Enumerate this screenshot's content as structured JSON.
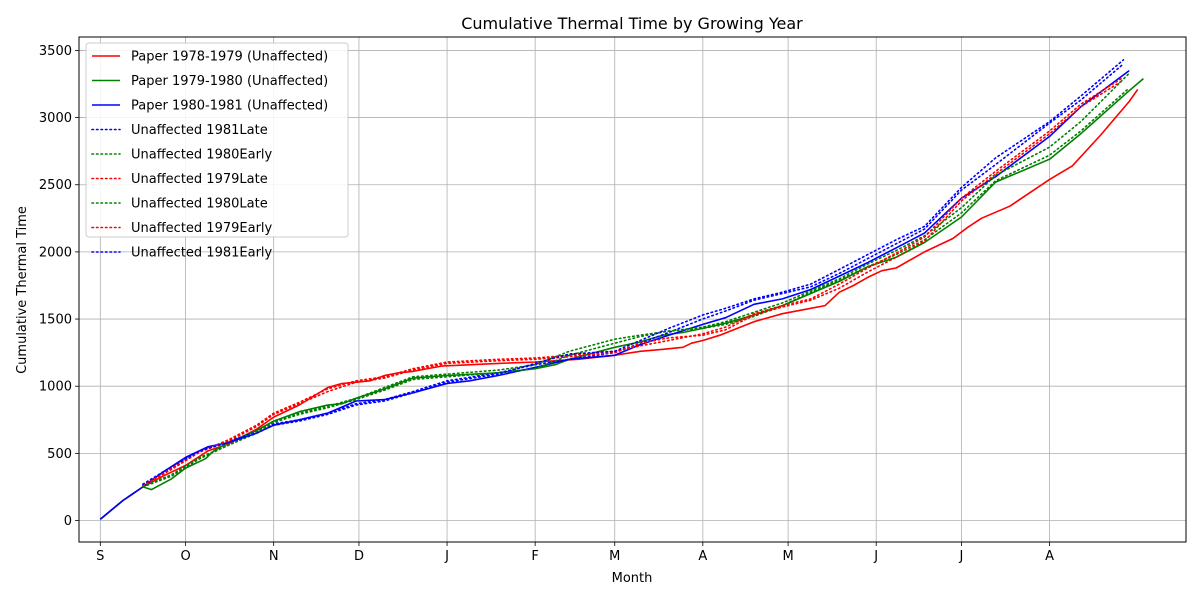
{
  "chart_data": {
    "type": "line",
    "title": "Cumulative Thermal Time by Growing Year",
    "xlabel": "Month",
    "ylabel": "Cumulative Thermal Time",
    "x_tick_labels": [
      "S",
      "O",
      "N",
      "D",
      "J",
      "F",
      "M",
      "A",
      "M",
      "J",
      "J",
      "A"
    ],
    "x_tick_days": [
      0,
      30,
      61,
      91,
      122,
      153,
      181,
      212,
      242,
      273,
      303,
      334
    ],
    "xlim": [
      -7.5,
      382
    ],
    "yticks": [
      0,
      500,
      1000,
      1500,
      2000,
      2500,
      3000,
      3500
    ],
    "ylim": [
      -160,
      3600
    ],
    "grid": true,
    "legend_position": "top-left",
    "series": [
      {
        "name": "Paper 1978-1979 (Unaffected)",
        "color": "#ff0000",
        "style": "solid",
        "x": [
          0,
          8,
          15,
          22,
          30,
          38,
          45,
          55,
          61,
          70,
          80,
          85,
          90,
          95,
          100,
          105,
          110,
          120,
          140,
          153,
          168,
          181,
          190,
          198,
          205,
          208,
          212,
          218,
          230,
          240,
          250,
          255,
          260,
          265,
          270,
          275,
          280,
          290,
          300,
          305,
          310,
          320,
          334,
          342,
          352,
          362,
          365
        ],
        "y": [
          10,
          150,
          250,
          330,
          410,
          520,
          570,
          680,
          770,
          860,
          990,
          1020,
          1030,
          1040,
          1080,
          1100,
          1110,
          1150,
          1170,
          1180,
          1200,
          1230,
          1260,
          1275,
          1290,
          1320,
          1340,
          1380,
          1480,
          1540,
          1580,
          1600,
          1700,
          1750,
          1810,
          1860,
          1880,
          2000,
          2100,
          2180,
          2250,
          2340,
          2540,
          2640,
          2870,
          3120,
          3210
        ]
      },
      {
        "name": "Paper 1979-1980 (Unaffected)",
        "color": "#008000",
        "style": "solid",
        "x": [
          0,
          8,
          15,
          18,
          25,
          30,
          37,
          40,
          45,
          55,
          61,
          70,
          80,
          85,
          90,
          100,
          110,
          122,
          140,
          153,
          160,
          165,
          181,
          190,
          198,
          205,
          212,
          220,
          230,
          240,
          250,
          260,
          270,
          280,
          290,
          303,
          315,
          334,
          345,
          362,
          367
        ],
        "y": [
          10,
          150,
          250,
          230,
          310,
          390,
          460,
          520,
          580,
          670,
          740,
          810,
          860,
          870,
          910,
          980,
          1060,
          1080,
          1100,
          1130,
          1160,
          1200,
          1290,
          1330,
          1380,
          1400,
          1430,
          1470,
          1530,
          1600,
          1690,
          1780,
          1890,
          1960,
          2070,
          2260,
          2520,
          2690,
          2880,
          3200,
          3290
        ]
      },
      {
        "name": "Paper 1980-1981 (Unaffected)",
        "color": "#0000ff",
        "style": "solid",
        "x": [
          0,
          8,
          15,
          22,
          30,
          38,
          45,
          55,
          61,
          70,
          80,
          90,
          100,
          110,
          122,
          130,
          140,
          153,
          165,
          181,
          190,
          200,
          212,
          220,
          230,
          240,
          250,
          260,
          270,
          280,
          290,
          303,
          315,
          334,
          345,
          362
        ],
        "y": [
          10,
          150,
          250,
          360,
          470,
          550,
          580,
          650,
          710,
          750,
          800,
          890,
          900,
          950,
          1020,
          1040,
          1080,
          1140,
          1200,
          1230,
          1310,
          1380,
          1460,
          1510,
          1610,
          1650,
          1720,
          1820,
          1920,
          2030,
          2140,
          2400,
          2560,
          2860,
          3080,
          3350
        ]
      },
      {
        "name": "Unaffected 1981Late",
        "color": "#0000ff",
        "style": "dotted",
        "x": [
          15,
          25,
          35,
          45,
          55,
          61,
          70,
          80,
          90,
          100,
          110,
          122,
          140,
          153,
          165,
          181,
          190,
          200,
          212,
          220,
          230,
          240,
          250,
          260,
          270,
          280,
          290,
          303,
          315,
          334,
          345,
          360
        ],
        "y": [
          260,
          390,
          520,
          590,
          660,
          720,
          750,
          800,
          870,
          900,
          960,
          1040,
          1100,
          1160,
          1200,
          1250,
          1320,
          1400,
          1500,
          1560,
          1640,
          1690,
          1740,
          1840,
          1950,
          2060,
          2170,
          2460,
          2650,
          2960,
          3130,
          3400
        ]
      },
      {
        "name": "Unaffected 1980Early",
        "color": "#008000",
        "style": "dotted",
        "x": [
          15,
          25,
          35,
          45,
          55,
          61,
          70,
          80,
          90,
          100,
          110,
          122,
          140,
          153,
          165,
          181,
          190,
          200,
          212,
          220,
          230,
          240,
          250,
          260,
          270,
          280,
          290,
          303,
          315,
          334,
          345,
          362
        ],
        "y": [
          250,
          330,
          460,
          560,
          650,
          730,
          790,
          840,
          900,
          970,
          1050,
          1070,
          1100,
          1130,
          1230,
          1320,
          1370,
          1410,
          1430,
          1460,
          1520,
          1600,
          1700,
          1790,
          1890,
          1980,
          2090,
          2290,
          2530,
          2720,
          2900,
          3220
        ]
      },
      {
        "name": "Unaffected 1979Late",
        "color": "#ff0000",
        "style": "dotted",
        "x": [
          15,
          25,
          35,
          45,
          55,
          61,
          70,
          80,
          90,
          100,
          110,
          122,
          140,
          153,
          165,
          181,
          190,
          200,
          212,
          220,
          230,
          240,
          250,
          260,
          270,
          280,
          290,
          303,
          315,
          334,
          345,
          360
        ],
        "y": [
          260,
          390,
          510,
          590,
          700,
          790,
          870,
          960,
          1030,
          1060,
          1120,
          1170,
          1190,
          1200,
          1220,
          1250,
          1320,
          1360,
          1380,
          1420,
          1530,
          1590,
          1640,
          1730,
          1850,
          1960,
          2080,
          2380,
          2580,
          2880,
          3080,
          3280
        ]
      },
      {
        "name": "Unaffected 1980Late",
        "color": "#008000",
        "style": "dotted",
        "x": [
          15,
          25,
          35,
          45,
          55,
          61,
          70,
          80,
          90,
          100,
          110,
          122,
          140,
          153,
          165,
          181,
          190,
          200,
          212,
          220,
          230,
          240,
          250,
          260,
          270,
          280,
          290,
          303,
          315,
          334,
          345,
          362
        ],
        "y": [
          255,
          340,
          470,
          560,
          660,
          740,
          800,
          850,
          910,
          990,
          1070,
          1090,
          1120,
          1160,
          1260,
          1350,
          1380,
          1410,
          1440,
          1480,
          1550,
          1620,
          1710,
          1800,
          1910,
          2010,
          2120,
          2330,
          2570,
          2780,
          2970,
          3330
        ]
      },
      {
        "name": "Unaffected 1979Early",
        "color": "#ff0000",
        "style": "dotted",
        "x": [
          15,
          25,
          35,
          45,
          55,
          61,
          70,
          80,
          90,
          100,
          110,
          122,
          140,
          153,
          165,
          181,
          190,
          200,
          212,
          220,
          230,
          240,
          250,
          260,
          270,
          280,
          290,
          303,
          315,
          334,
          345,
          360
        ],
        "y": [
          260,
          380,
          510,
          600,
          710,
          800,
          880,
          980,
          1040,
          1070,
          1130,
          1180,
          1200,
          1210,
          1230,
          1260,
          1300,
          1340,
          1390,
          1440,
          1540,
          1600,
          1650,
          1760,
          1880,
          1990,
          2110,
          2400,
          2600,
          2900,
          3100,
          3300
        ]
      },
      {
        "name": "Unaffected 1981Early",
        "color": "#0000ff",
        "style": "dotted",
        "x": [
          15,
          25,
          35,
          45,
          55,
          61,
          70,
          80,
          90,
          100,
          110,
          122,
          140,
          153,
          165,
          181,
          190,
          200,
          212,
          220,
          230,
          240,
          250,
          260,
          270,
          280,
          290,
          303,
          315,
          334,
          345,
          360
        ],
        "y": [
          270,
          400,
          520,
          580,
          650,
          710,
          740,
          790,
          860,
          890,
          950,
          1030,
          1090,
          1170,
          1240,
          1260,
          1340,
          1430,
          1530,
          1580,
          1650,
          1700,
          1760,
          1870,
          1980,
          2090,
          2190,
          2480,
          2700,
          2970,
          3160,
          3430
        ]
      }
    ]
  }
}
